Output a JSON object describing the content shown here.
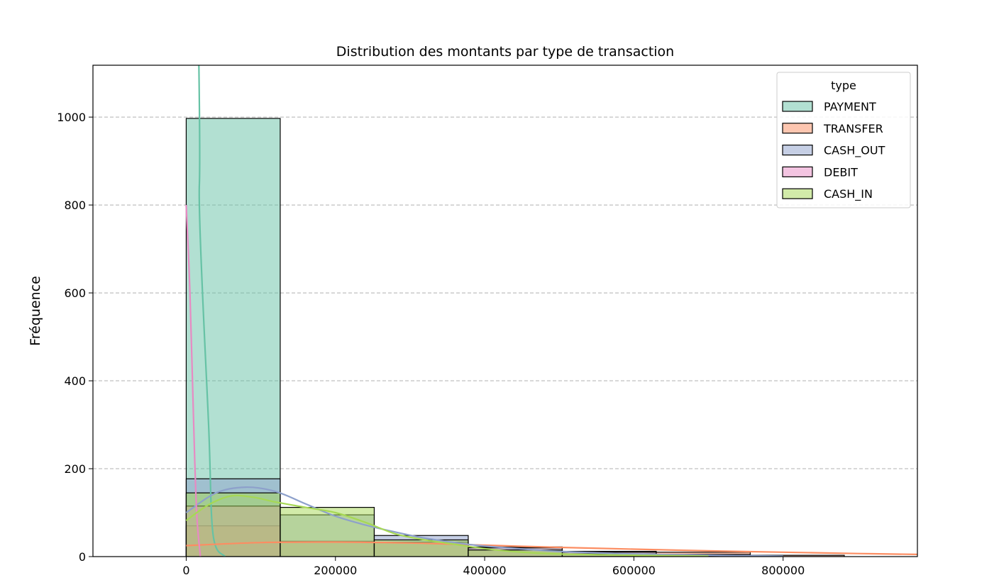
{
  "chart_data": {
    "type": "bar",
    "title": "Distribution des montants par type de transaction",
    "xlabel": "",
    "ylabel": "Fréquence",
    "xlim": [
      -125000,
      980000
    ],
    "ylim": [
      0,
      1118
    ],
    "x_ticks": [
      0,
      200000,
      400000,
      600000,
      800000
    ],
    "x_tick_labels": [
      "0",
      "200000",
      "400000",
      "600000",
      "800000"
    ],
    "y_ticks": [
      0,
      200,
      400,
      600,
      800,
      1000
    ],
    "y_tick_labels": [
      "0",
      "200",
      "400",
      "600",
      "800",
      "1000"
    ],
    "grid": "y-dashed",
    "bin_edges": [
      0,
      126000,
      252000,
      378000,
      504000,
      630000,
      756000,
      882000
    ],
    "legend": {
      "title": "type",
      "placement": "upper-right"
    },
    "series": [
      {
        "name": "PAYMENT",
        "color": "#66c2a5",
        "counts": [
          997,
          0,
          0,
          0,
          0,
          0,
          0
        ],
        "kde": [
          [
            0,
            3000
          ],
          [
            17000,
            1118
          ],
          [
            18000,
            770
          ],
          [
            30000,
            300
          ],
          [
            36000,
            50
          ],
          [
            52000,
            0
          ]
        ]
      },
      {
        "name": "TRANSFER",
        "color": "#fc8d62",
        "counts": [
          70,
          35,
          33,
          22,
          12,
          10,
          3
        ],
        "kde": [
          [
            0,
            25
          ],
          [
            100000,
            32
          ],
          [
            200000,
            33
          ],
          [
            300000,
            31
          ],
          [
            400000,
            26
          ],
          [
            500000,
            21
          ],
          [
            600000,
            17
          ],
          [
            700000,
            13
          ],
          [
            800000,
            10
          ],
          [
            900000,
            7
          ],
          [
            980000,
            5
          ]
        ]
      },
      {
        "name": "CASH_OUT",
        "color": "#8da0cb",
        "counts": [
          177,
          95,
          48,
          20,
          10,
          5,
          0
        ],
        "kde": [
          [
            0,
            100
          ],
          [
            40000,
            145
          ],
          [
            80000,
            158
          ],
          [
            120000,
            148
          ],
          [
            160000,
            120
          ],
          [
            200000,
            92
          ],
          [
            240000,
            72
          ],
          [
            280000,
            56
          ],
          [
            320000,
            42
          ],
          [
            360000,
            32
          ],
          [
            400000,
            24
          ],
          [
            500000,
            12
          ],
          [
            600000,
            6
          ],
          [
            700000,
            3
          ],
          [
            800000,
            1
          ]
        ]
      },
      {
        "name": "DEBIT",
        "color": "#e78ac3",
        "counts": [
          115,
          0,
          0,
          0,
          0,
          0,
          0
        ],
        "kde": [
          [
            0,
            800
          ],
          [
            5000,
            600
          ],
          [
            10000,
            300
          ],
          [
            14000,
            100
          ],
          [
            19000,
            0
          ]
        ]
      },
      {
        "name": "CASH_IN",
        "color": "#a6d854",
        "counts": [
          145,
          112,
          38,
          15,
          6,
          2,
          0
        ],
        "kde": [
          [
            0,
            82
          ],
          [
            30000,
            118
          ],
          [
            60000,
            138
          ],
          [
            90000,
            135
          ],
          [
            120000,
            124
          ],
          [
            160000,
            112
          ],
          [
            200000,
            100
          ],
          [
            240000,
            78
          ],
          [
            280000,
            52
          ],
          [
            320000,
            38
          ],
          [
            360000,
            28
          ],
          [
            400000,
            18
          ],
          [
            450000,
            10
          ],
          [
            500000,
            6
          ],
          [
            600000,
            3
          ],
          [
            700000,
            1
          ]
        ]
      }
    ]
  }
}
